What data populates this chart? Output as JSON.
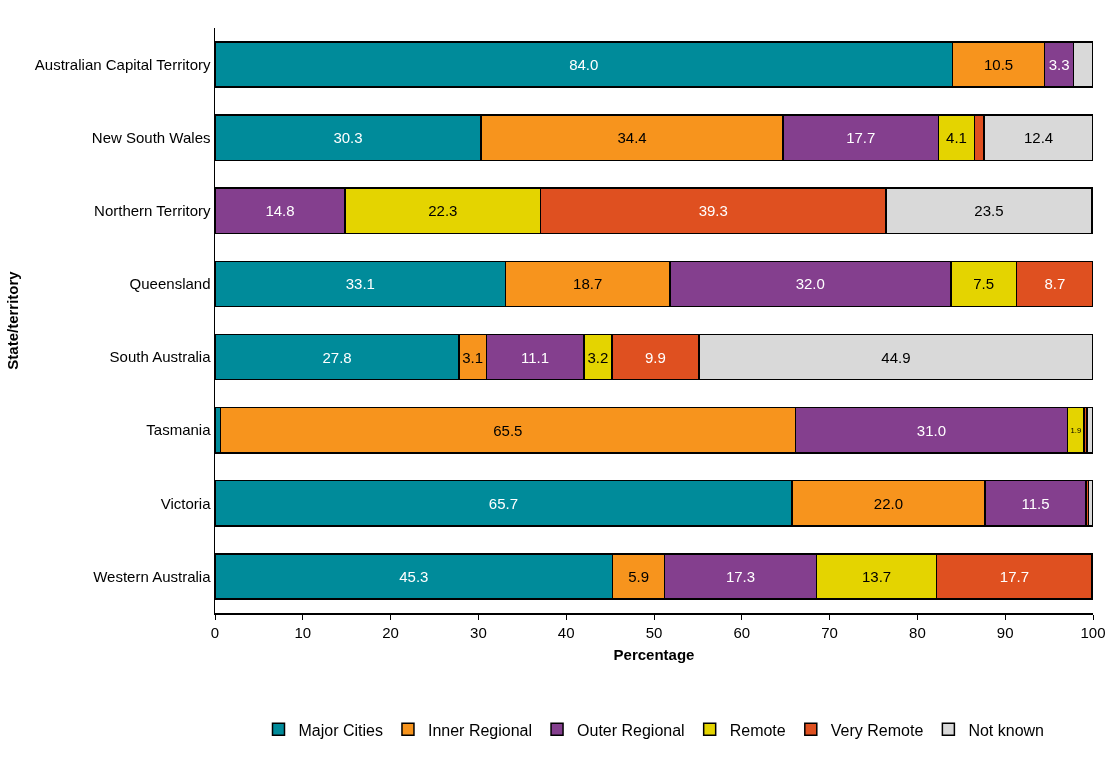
{
  "chart_data": {
    "type": "bar",
    "orientation": "horizontal",
    "stacked": true,
    "xlabel": "Percentage",
    "ylabel": "State/territory",
    "categories": [
      "Australian Capital Territory",
      "New South Wales",
      "Northern Territory",
      "Queensland",
      "South Australia",
      "Tasmania",
      "Victoria",
      "Western Australia"
    ],
    "xlim": [
      0,
      100
    ],
    "xticks": [
      0,
      10,
      20,
      30,
      40,
      50,
      60,
      70,
      80,
      90,
      100
    ],
    "grid": false,
    "legend": "bottom",
    "series": [
      {
        "name": "Major Cities",
        "color": "#008b9a",
        "values": [
          84.0,
          30.3,
          null,
          33.1,
          27.8,
          0.6,
          65.7,
          45.3
        ],
        "value_labels": [
          "84.0",
          "30.3",
          null,
          "33.1",
          "27.8",
          null,
          "65.7",
          "45.3"
        ]
      },
      {
        "name": "Inner Regional",
        "color": "#f7941d",
        "values": [
          10.5,
          34.4,
          null,
          18.7,
          3.1,
          65.5,
          22.0,
          5.9
        ],
        "value_labels": [
          "10.5",
          "34.4",
          null,
          "18.7",
          "3.1",
          "65.5",
          "22.0",
          "5.9"
        ]
      },
      {
        "name": "Outer Regional",
        "color": "#843f8e",
        "values": [
          3.3,
          17.7,
          14.8,
          32.0,
          11.1,
          31.0,
          11.5,
          17.3
        ],
        "value_labels": [
          "3.3",
          "17.7",
          "14.8",
          "32.0",
          "11.1",
          "31.0",
          "11.5",
          "17.3"
        ]
      },
      {
        "name": "Remote",
        "color": "#e4d400",
        "values": [
          null,
          4.1,
          22.3,
          7.5,
          3.2,
          1.9,
          null,
          13.7
        ],
        "value_labels": [
          null,
          "4.1",
          "22.3",
          "7.5",
          "3.2",
          "1.9",
          null,
          "13.7"
        ]
      },
      {
        "name": "Very Remote",
        "color": "#df5020",
        "values": [
          null,
          1.1,
          39.3,
          8.7,
          9.9,
          0.3,
          0.3,
          17.7
        ],
        "value_labels": [
          null,
          null,
          "39.3",
          "8.7",
          "9.9",
          null,
          null,
          "17.7"
        ]
      },
      {
        "name": "Not known",
        "color": "#d9d9d9",
        "values": [
          2.2,
          12.4,
          23.5,
          null,
          44.9,
          0.7,
          0.5,
          null
        ],
        "value_labels": [
          null,
          "12.4",
          "23.5",
          null,
          "44.9",
          null,
          null,
          null
        ]
      }
    ]
  }
}
